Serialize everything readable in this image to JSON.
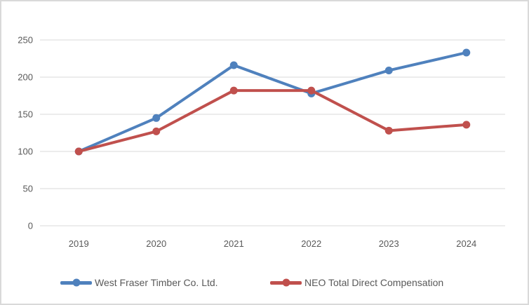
{
  "chart_data": {
    "type": "line",
    "title": "",
    "xlabel": "",
    "ylabel": "",
    "categories": [
      "2019",
      "2020",
      "2021",
      "2022",
      "2023",
      "2024"
    ],
    "series": [
      {
        "name": "West Fraser Timber Co. Ltd.",
        "color": "#4F81BD",
        "values": [
          100,
          145,
          216,
          178,
          209,
          233
        ]
      },
      {
        "name": "NEO Total Direct Compensation",
        "color": "#C0504D",
        "values": [
          100,
          127,
          182,
          182,
          128,
          136
        ]
      }
    ],
    "ylim": [
      0,
      250
    ],
    "yticks": [
      0,
      50,
      100,
      150,
      200,
      250
    ],
    "grid": true,
    "marker": "circle",
    "line_width": 4,
    "legend_position": "bottom",
    "gridline_color": "#D9D9D9",
    "axis_text_color": "#595959",
    "frame_border_color": "#D9D9D9",
    "background": "#FFFFFF"
  }
}
